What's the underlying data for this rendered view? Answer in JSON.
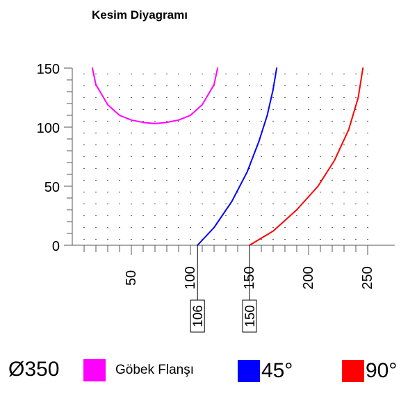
{
  "chart_data": {
    "type": "line",
    "title": "Kesim Diyagramı",
    "xlim": [
      0,
      275
    ],
    "ylim": [
      0,
      150
    ],
    "x_ticks": [
      50,
      100,
      150,
      200,
      250
    ],
    "y_ticks": [
      0,
      50,
      100,
      150
    ],
    "grid": "dotted",
    "annotations": [
      "106",
      "150"
    ],
    "series": [
      {
        "name": "Göbek Flanşı",
        "color": "#ff00ff",
        "x": [
          17,
          20,
          30,
          40,
          50,
          60,
          70,
          80,
          90,
          100,
          110,
          120,
          123
        ],
        "y": [
          150,
          136,
          119,
          110,
          106,
          104,
          103,
          104,
          106,
          110,
          119,
          136,
          150
        ]
      },
      {
        "name": "45°",
        "color": "#0000ff",
        "x": [
          106,
          120,
          135,
          148,
          158,
          165,
          170,
          173
        ],
        "y": [
          0,
          15,
          37,
          62,
          88,
          110,
          132,
          150
        ]
      },
      {
        "name": "90°",
        "color": "#ff0000",
        "x": [
          150,
          170,
          190,
          208,
          222,
          234,
          242,
          246
        ],
        "y": [
          0,
          12,
          30,
          50,
          72,
          98,
          125,
          150
        ]
      }
    ]
  },
  "legend": {
    "diameter": "Ø350",
    "items": [
      {
        "label": "Göbek Flanşı",
        "color": "#ff00ff"
      },
      {
        "label": "45°",
        "color": "#0000ff"
      },
      {
        "label": "90°",
        "color": "#ff0000"
      }
    ]
  }
}
